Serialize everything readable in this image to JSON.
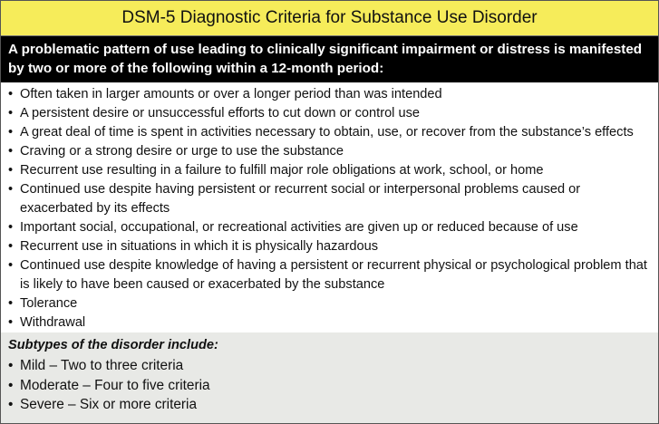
{
  "title": "DSM-5 Diagnostic Criteria for Substance Use Disorder",
  "intro": "A problematic pattern of use leading to clinically significant impairment or distress is manifested by two or more of the following within a 12-month period:",
  "bullet": "•",
  "criteria": [
    "Often taken in larger amounts or over a longer period than was intended",
    "A persistent desire or unsuccessful efforts to cut down or control use",
    "A great deal of time is spent in activities necessary to obtain, use, or recover from the substance’s effects",
    "Craving or a strong desire or urge to use the substance",
    "Recurrent use resulting in a failure to fulfill major role obligations at work, school, or home",
    "Continued use despite having persistent or recurrent social or interpersonal problems caused or exacerbated by its effects",
    "Important social, occupational, or recreational activities are given up or reduced because of use",
    "Recurrent use in situations in which it is physically hazardous",
    "Continued use despite knowledge of having a persistent or recurrent physical or psychological problem that is likely to have been caused or exacerbated by the substance",
    "Tolerance",
    "Withdrawal"
  ],
  "subtypes": {
    "heading": "Subtypes of the disorder include:",
    "items": [
      "Mild – Two to three criteria",
      "Moderate – Four to five criteria",
      "Severe – Six or more criteria"
    ]
  },
  "colors": {
    "title_background": "#f6ec5a",
    "intro_background": "#000000",
    "subtypes_background": "#e8e9e6"
  }
}
